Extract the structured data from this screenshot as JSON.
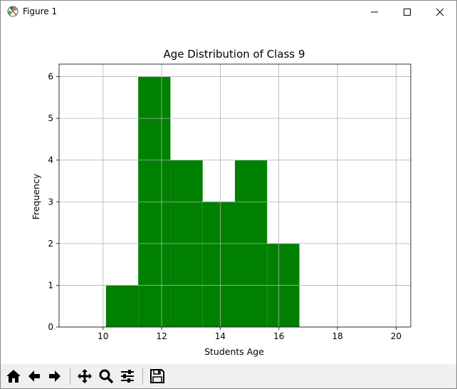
{
  "window": {
    "title": "Figure 1"
  },
  "title_bar_buttons": [
    {
      "icon": "minimize-icon"
    },
    {
      "icon": "maximize-icon"
    },
    {
      "icon": "close-icon"
    }
  ],
  "toolbar": {
    "buttons": [
      {
        "icon": "home-icon"
      },
      {
        "icon": "back-arrow-icon"
      },
      {
        "icon": "forward-arrow-icon"
      },
      {
        "icon": "pan-icon"
      },
      {
        "icon": "zoom-icon"
      },
      {
        "icon": "configure-subplots-icon"
      },
      {
        "icon": "save-icon"
      }
    ]
  },
  "chart_data": {
    "type": "bar",
    "title": "Age Distribution of Class 9",
    "xlabel": "Students Age",
    "ylabel": "Frequency",
    "bar_color": "#008000",
    "grid": true,
    "xlim": [
      8.5,
      20.5
    ],
    "ylim": [
      0,
      6.3
    ],
    "xticks": [
      10,
      12,
      14,
      16,
      18,
      20
    ],
    "yticks": [
      0,
      1,
      2,
      3,
      4,
      5,
      6
    ],
    "bins": [
      {
        "start": 10.1,
        "end": 11.2,
        "value": 1
      },
      {
        "start": 11.2,
        "end": 12.3,
        "value": 6
      },
      {
        "start": 12.3,
        "end": 13.4,
        "value": 4
      },
      {
        "start": 13.4,
        "end": 14.5,
        "value": 3
      },
      {
        "start": 14.5,
        "end": 15.6,
        "value": 4
      },
      {
        "start": 15.6,
        "end": 16.7,
        "value": 2
      }
    ]
  }
}
